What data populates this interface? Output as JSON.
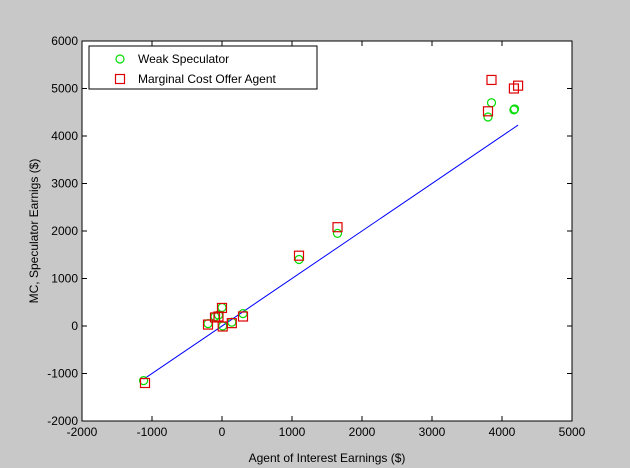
{
  "chart_data": {
    "type": "scatter",
    "xlabel": "Agent of Interest Earnings ($)",
    "ylabel": "MC, Speculator Earnigs ($)",
    "xlim": [
      -2000,
      5000
    ],
    "ylim": [
      -2000,
      6000
    ],
    "xticks": [
      "-2000",
      "-1000",
      "0",
      "1000",
      "2000",
      "3000",
      "4000",
      "5000"
    ],
    "yticks": [
      "-2000",
      "-1000",
      "0",
      "1000",
      "2000",
      "3000",
      "4000",
      "5000",
      "6000"
    ],
    "grid": false,
    "legend_position": "top-left",
    "series": [
      {
        "name": "Weak Speculator",
        "marker": "circle",
        "color": "#00dd00",
        "x": [
          -1120,
          -200,
          -100,
          -50,
          0,
          10,
          140,
          300,
          1100,
          1650,
          3800,
          3850,
          4170,
          4180
        ],
        "y": [
          -1150,
          50,
          200,
          230,
          390,
          0,
          80,
          260,
          1400,
          1950,
          4400,
          4700,
          4550,
          4570
        ]
      },
      {
        "name": "Marginal Cost Offer Agent",
        "marker": "square",
        "color": "#dd0000",
        "x": [
          -1100,
          -200,
          -100,
          -50,
          0,
          10,
          140,
          300,
          1100,
          1650,
          3800,
          3850,
          4170,
          4230
        ],
        "y": [
          -1200,
          30,
          180,
          200,
          380,
          -10,
          60,
          200,
          1480,
          2080,
          4520,
          5180,
          5000,
          5060
        ]
      },
      {
        "name": "",
        "type": "line",
        "color": "#0000ff",
        "x": [
          -1120,
          4230
        ],
        "y": [
          -1120,
          4230
        ]
      }
    ]
  }
}
